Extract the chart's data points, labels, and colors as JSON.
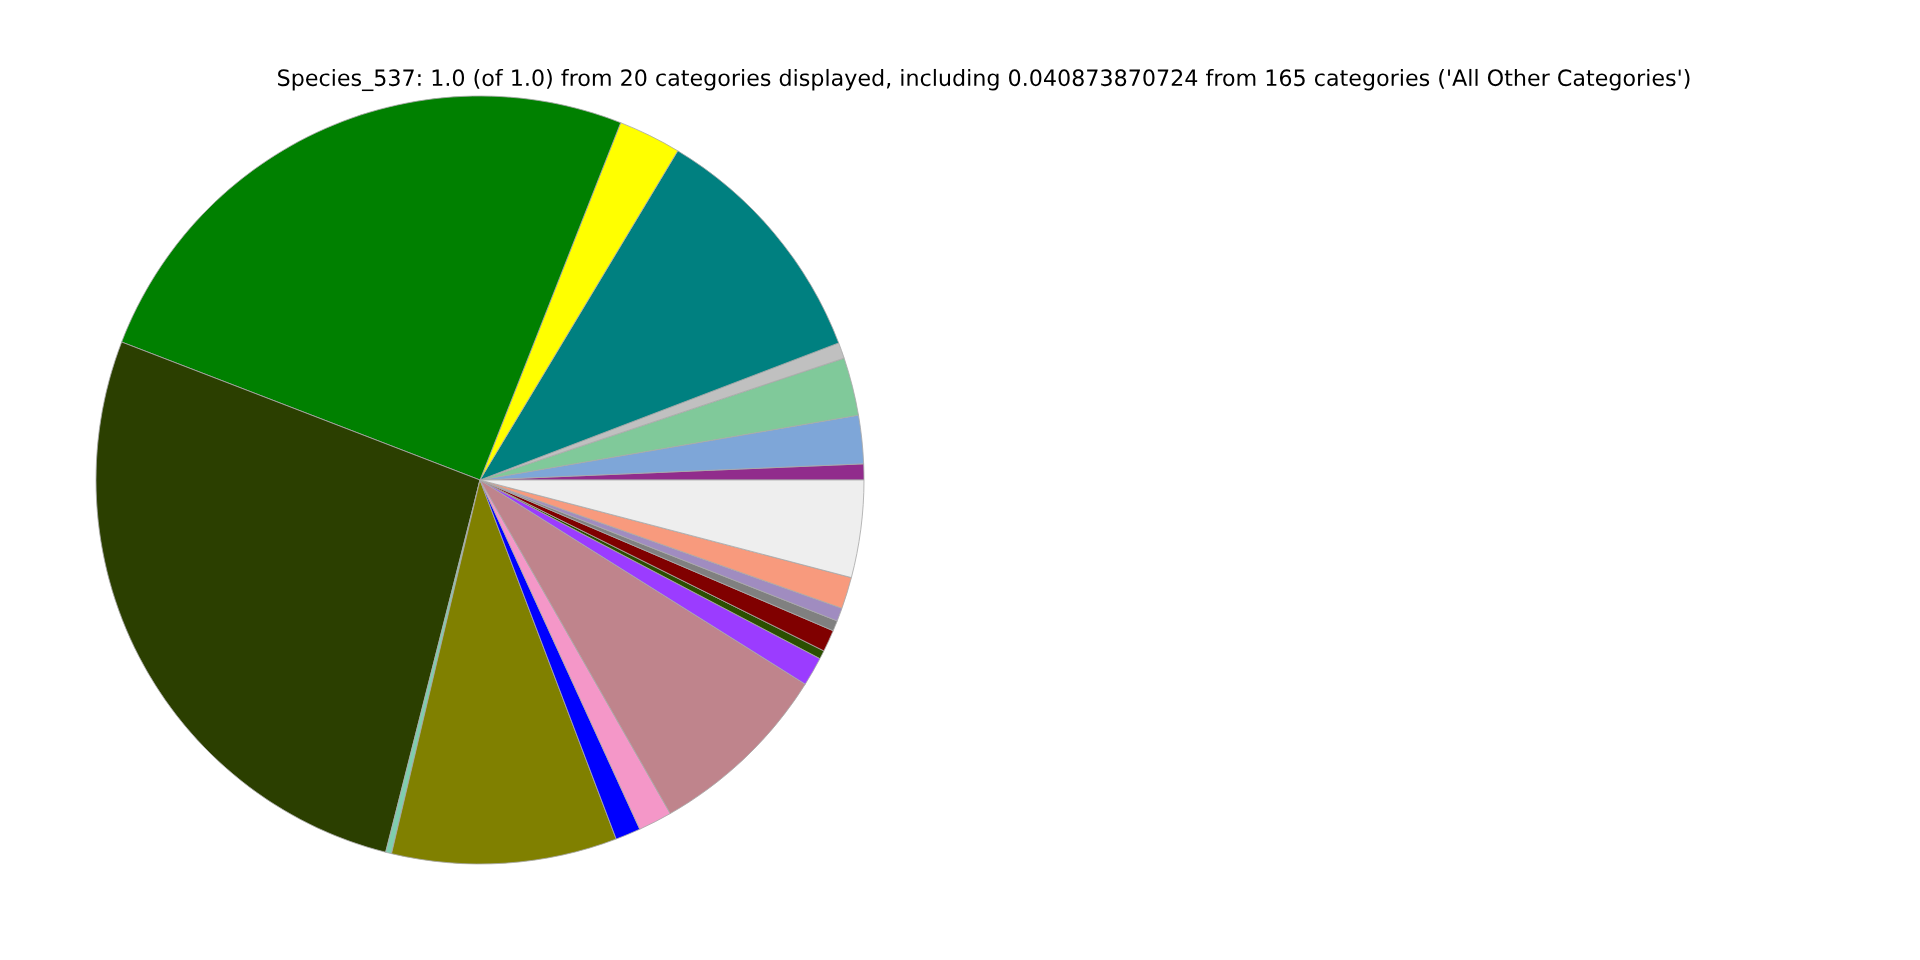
{
  "chart_data": {
    "type": "pie",
    "title": "Species_537: 1.0 (of 1.0) from 20 categories displayed, including 0.040873870724 from 165 categories ('All Other Categories')",
    "categories": [
      null,
      null,
      null,
      null,
      null,
      null,
      null,
      null,
      null,
      null,
      null,
      null,
      null,
      null,
      null,
      null,
      null,
      null,
      null,
      null
    ],
    "values": [
      0.67,
      2.03,
      2.44,
      0.67,
      10.58,
      2.64,
      25.12,
      26.9,
      0.25,
      9.47,
      1.06,
      1.42,
      7.83,
      1.22,
      0.36,
      0.92,
      0.44,
      0.56,
      1.33,
      4.09
    ],
    "colors": [
      "#912c8c",
      "#7ea6d8",
      "#80c99a",
      "#c0c0c0",
      "#008080",
      "#ffff00",
      "#008000",
      "#2b3f00",
      "#7fcfaf",
      "#808000",
      "#0000ff",
      "#f497c8",
      "#bf848c",
      "#9b3cff",
      "#2b4f00",
      "#800000",
      "#808080",
      "#a08cc0",
      "#f89a7d",
      "#eeeeee"
    ]
  }
}
